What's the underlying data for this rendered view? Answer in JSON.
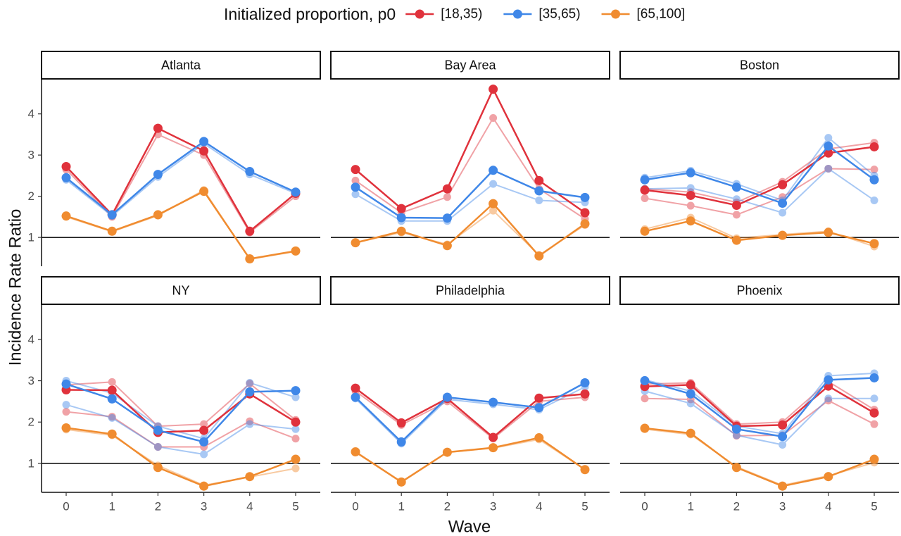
{
  "chart_data": {
    "type": "line",
    "legend": {
      "title": "Initialized proportion, p0",
      "placement": "top",
      "entries": [
        {
          "label": "[18,35)",
          "color": "#E0323C"
        },
        {
          "label": "[35,65)",
          "color": "#3F87E8"
        },
        {
          "label": "[65,100]",
          "color": "#F08C30"
        }
      ]
    },
    "xlabel": "Wave",
    "ylabel": "Incidence Rate Ratio",
    "x_ticks": [
      0,
      1,
      2,
      3,
      4,
      5
    ],
    "y_ticks": [
      1,
      2,
      3,
      4
    ],
    "ylim": [
      0.3,
      4.85
    ],
    "reference_line": 1,
    "grid": false,
    "panels": [
      {
        "title": "Atlanta",
        "series": [
          {
            "group": "[18,35)",
            "replicate": "main",
            "values": [
              2.72,
              1.55,
              3.65,
              3.1,
              1.15,
              2.07
            ]
          },
          {
            "group": "[18,35)",
            "replicate": "faded-1",
            "values": [
              2.65,
              1.5,
              3.5,
              3.0,
              1.12,
              2.0
            ]
          },
          {
            "group": "[35,65)",
            "replicate": "main",
            "values": [
              2.45,
              1.55,
              2.53,
              3.33,
              2.6,
              2.1
            ]
          },
          {
            "group": "[35,65)",
            "replicate": "faded-1",
            "values": [
              2.4,
              1.52,
              2.47,
              3.28,
              2.53,
              2.07
            ]
          },
          {
            "group": "[65,100]",
            "replicate": "main",
            "values": [
              1.52,
              1.15,
              1.55,
              2.12,
              0.48,
              0.67
            ]
          },
          {
            "group": "[65,100]",
            "replicate": "faded-1",
            "values": [
              1.5,
              1.14,
              1.53,
              2.15,
              0.47,
              0.66
            ]
          }
        ]
      },
      {
        "title": "Bay Area",
        "series": [
          {
            "group": "[18,35)",
            "replicate": "main",
            "values": [
              2.65,
              1.7,
              2.18,
              4.6,
              2.38,
              1.6
            ]
          },
          {
            "group": "[18,35)",
            "replicate": "faded-1",
            "values": [
              2.38,
              1.6,
              1.98,
              3.9,
              2.18,
              1.45
            ]
          },
          {
            "group": "[35,65)",
            "replicate": "main",
            "values": [
              2.22,
              1.48,
              1.47,
              2.63,
              2.13,
              1.97
            ]
          },
          {
            "group": "[35,65)",
            "replicate": "faded-1",
            "values": [
              2.05,
              1.4,
              1.4,
              2.3,
              1.9,
              1.85
            ]
          },
          {
            "group": "[65,100]",
            "replicate": "main",
            "values": [
              0.87,
              1.15,
              0.8,
              1.82,
              0.55,
              1.33
            ]
          },
          {
            "group": "[65,100]",
            "replicate": "faded-1",
            "values": [
              0.87,
              1.12,
              0.83,
              1.65,
              0.57,
              1.3
            ]
          }
        ]
      },
      {
        "title": "Boston",
        "series": [
          {
            "group": "[18,35)",
            "replicate": "main",
            "values": [
              2.15,
              2.02,
              1.78,
              2.28,
              3.05,
              3.2
            ]
          },
          {
            "group": "[18,35)",
            "replicate": "faded-1",
            "values": [
              1.95,
              1.77,
              1.55,
              1.98,
              2.67,
              2.65
            ]
          },
          {
            "group": "[18,35)",
            "replicate": "faded-2",
            "values": [
              2.18,
              2.1,
              1.85,
              2.35,
              3.15,
              3.3
            ]
          },
          {
            "group": "[35,65)",
            "replicate": "main",
            "values": [
              2.4,
              2.57,
              2.22,
              1.83,
              3.22,
              2.4
            ]
          },
          {
            "group": "[35,65)",
            "replicate": "faded-1",
            "values": [
              2.18,
              2.2,
              1.93,
              1.6,
              2.67,
              1.9
            ]
          },
          {
            "group": "[35,65)",
            "replicate": "faded-2",
            "values": [
              2.45,
              2.62,
              2.3,
              1.9,
              3.42,
              2.5
            ]
          },
          {
            "group": "[65,100]",
            "replicate": "main",
            "values": [
              1.15,
              1.4,
              0.93,
              1.05,
              1.12,
              0.85
            ]
          },
          {
            "group": "[65,100]",
            "replicate": "faded-1",
            "values": [
              1.2,
              1.48,
              0.98,
              1.07,
              1.15,
              0.78
            ]
          }
        ]
      },
      {
        "title": "NY",
        "series": [
          {
            "group": "[18,35)",
            "replicate": "main",
            "values": [
              2.78,
              2.77,
              1.75,
              1.8,
              2.68,
              2.0
            ]
          },
          {
            "group": "[18,35)",
            "replicate": "faded-1",
            "values": [
              2.25,
              2.13,
              1.4,
              1.4,
              2.02,
              1.6
            ]
          },
          {
            "group": "[18,35)",
            "replicate": "faded-2",
            "values": [
              2.9,
              2.97,
              1.9,
              1.95,
              2.93,
              2.05
            ]
          },
          {
            "group": "[35,65)",
            "replicate": "main",
            "values": [
              2.92,
              2.56,
              1.8,
              1.52,
              2.73,
              2.76
            ]
          },
          {
            "group": "[35,65)",
            "replicate": "faded-1",
            "values": [
              2.42,
              2.1,
              1.4,
              1.22,
              1.95,
              1.83
            ]
          },
          {
            "group": "[35,65)",
            "replicate": "faded-2",
            "values": [
              3.0,
              2.7,
              1.9,
              1.6,
              2.95,
              2.6
            ]
          },
          {
            "group": "[65,100]",
            "replicate": "main",
            "values": [
              1.86,
              1.71,
              0.9,
              0.45,
              0.68,
              1.1
            ]
          },
          {
            "group": "[65,100]",
            "replicate": "faded-1",
            "values": [
              1.82,
              1.68,
              0.95,
              0.47,
              0.67,
              0.88
            ]
          }
        ]
      },
      {
        "title": "Philadelphia",
        "series": [
          {
            "group": "[18,35)",
            "replicate": "main",
            "values": [
              2.82,
              1.98,
              2.57,
              1.63,
              2.58,
              2.68
            ]
          },
          {
            "group": "[18,35)",
            "replicate": "faded-1",
            "values": [
              2.75,
              1.93,
              2.5,
              1.6,
              2.5,
              2.6
            ]
          },
          {
            "group": "[35,65)",
            "replicate": "main",
            "values": [
              2.6,
              1.52,
              2.6,
              2.48,
              2.35,
              2.95
            ]
          },
          {
            "group": "[35,65)",
            "replicate": "faded-1",
            "values": [
              2.57,
              1.48,
              2.55,
              2.43,
              2.3,
              2.85
            ]
          },
          {
            "group": "[65,100]",
            "replicate": "main",
            "values": [
              1.28,
              0.55,
              1.27,
              1.38,
              1.62,
              0.85
            ]
          },
          {
            "group": "[65,100]",
            "replicate": "faded-1",
            "values": [
              1.27,
              0.55,
              1.27,
              1.37,
              1.58,
              0.85
            ]
          }
        ]
      },
      {
        "title": "Phoenix",
        "series": [
          {
            "group": "[18,35)",
            "replicate": "main",
            "values": [
              2.86,
              2.9,
              1.9,
              1.93,
              2.87,
              2.22
            ]
          },
          {
            "group": "[18,35)",
            "replicate": "faded-1",
            "values": [
              2.57,
              2.55,
              1.67,
              1.68,
              2.52,
              1.95
            ]
          },
          {
            "group": "[18,35)",
            "replicate": "faded-2",
            "values": [
              2.92,
              2.95,
              1.95,
              2.0,
              2.98,
              2.3
            ]
          },
          {
            "group": "[35,65)",
            "replicate": "main",
            "values": [
              3.0,
              2.68,
              1.83,
              1.65,
              3.02,
              3.07
            ]
          },
          {
            "group": "[35,65)",
            "replicate": "faded-1",
            "values": [
              2.75,
              2.45,
              1.68,
              1.45,
              2.57,
              2.57
            ]
          },
          {
            "group": "[35,65)",
            "replicate": "faded-2",
            "values": [
              3.02,
              2.75,
              1.9,
              1.72,
              3.12,
              3.18
            ]
          },
          {
            "group": "[65,100]",
            "replicate": "main",
            "values": [
              1.85,
              1.73,
              0.9,
              0.45,
              0.68,
              1.1
            ]
          },
          {
            "group": "[65,100]",
            "replicate": "faded-1",
            "values": [
              1.83,
              1.7,
              0.92,
              0.47,
              0.7,
              1.02
            ]
          }
        ]
      }
    ]
  }
}
